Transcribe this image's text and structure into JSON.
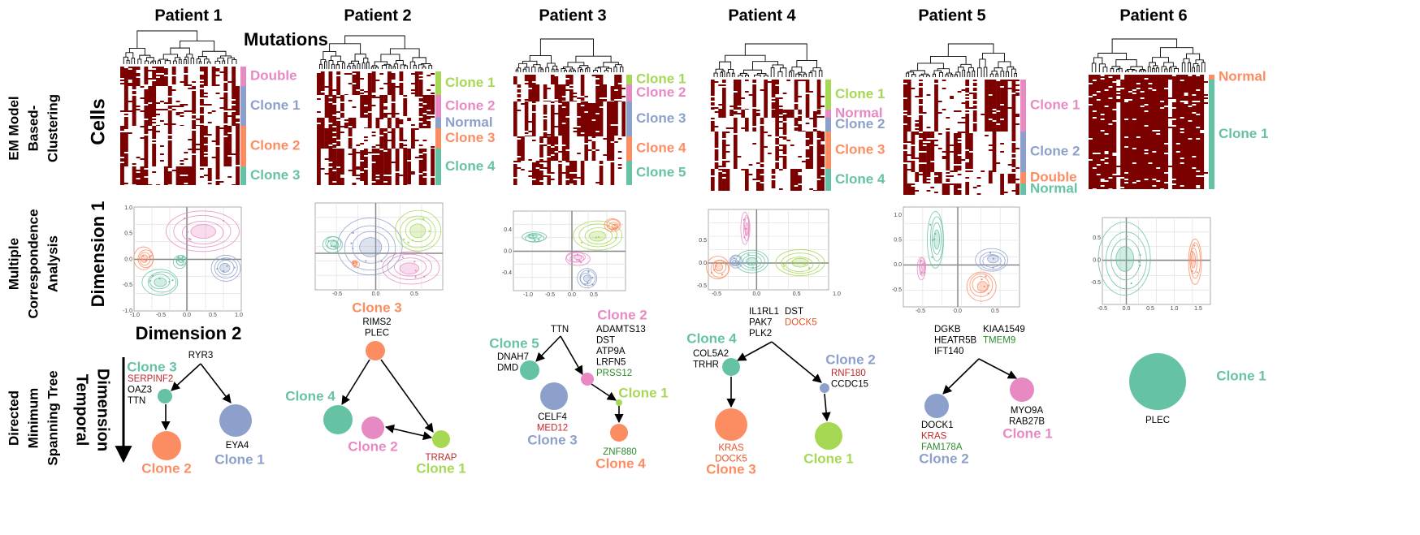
{
  "row_labels": [
    [
      "EM Model",
      "Based-",
      "Clustering"
    ],
    [
      "Multiple",
      "Correspondence",
      "Analysis"
    ],
    [
      "Directed",
      "Minimum",
      "Spanning Tree"
    ]
  ],
  "axis_labels": {
    "mutations": "Mutations",
    "cells": "Cells",
    "dimension_1": "Dimension 1",
    "dimension_2": "Dimension 2",
    "temporal_dimension": [
      "Temporal",
      "Dimension"
    ]
  },
  "heatmap_color": "#7b0000",
  "patients": [
    {
      "title": "Patient 1",
      "clusters": [
        {
          "label": "Double",
          "color": "#e78ac3"
        },
        {
          "label": "Clone 1",
          "color": "#8da0cb"
        },
        {
          "label": "Clone 2",
          "color": "#fc8d62"
        },
        {
          "label": "Clone 3",
          "color": "#66c2a5"
        }
      ],
      "mca": {
        "xticks": [
          "-1.0",
          "-0.5",
          "0.0",
          "0.5",
          "1.0"
        ],
        "yticks": [
          "1.0",
          "0.5",
          "0.0",
          "-0.5",
          "-1.0"
        ]
      },
      "tree": {
        "groups": [
          [
            {
              "text": "RYR3",
              "color": "#000000"
            }
          ]
        ],
        "nodes": [
          {
            "label": "Clone 3",
            "color": "#66c2a5",
            "genes": [
              {
                "text": "SERPINF2",
                "color": "#c0282d"
              },
              {
                "text": "OAZ3",
                "color": "#000000"
              },
              {
                "text": "TTN",
                "color": "#000000"
              }
            ]
          },
          {
            "label": "Clone 1",
            "color": "#8da0cb",
            "genes": [
              {
                "text": "EYA4",
                "color": "#000000"
              }
            ]
          },
          {
            "label": "Clone 2",
            "color": "#fc8d62",
            "genes": []
          }
        ]
      }
    },
    {
      "title": "Patient 2",
      "clusters": [
        {
          "label": "Clone 1",
          "color": "#a6d854"
        },
        {
          "label": "Clone 2",
          "color": "#e78ac3"
        },
        {
          "label": "Normal",
          "color": "#8da0cb"
        },
        {
          "label": "Clone 3",
          "color": "#fc8d62"
        },
        {
          "label": "Clone 4",
          "color": "#66c2a5"
        }
      ],
      "mca": {
        "xticks": [
          "-0.5",
          "0.0",
          "0.5"
        ]
      },
      "tree": {
        "groups": [],
        "nodes": [
          {
            "label": "Clone 3",
            "color": "#fc8d62",
            "genes": [
              {
                "text": "RIMS2",
                "color": "#000000"
              },
              {
                "text": "PLEC",
                "color": "#000000"
              }
            ]
          },
          {
            "label": "Clone 4",
            "color": "#66c2a5",
            "genes": []
          },
          {
            "label": "Clone 2",
            "color": "#e78ac3",
            "genes": []
          },
          {
            "label": "Clone 1",
            "color": "#a6d854",
            "genes": [
              {
                "text": "TRRAP",
                "color": "#c0282d"
              }
            ]
          }
        ]
      }
    },
    {
      "title": "Patient 3",
      "clusters": [
        {
          "label": "Clone 1",
          "color": "#a6d854"
        },
        {
          "label": "Clone 2",
          "color": "#e78ac3"
        },
        {
          "label": "Clone 3",
          "color": "#8da0cb"
        },
        {
          "label": "Clone 4",
          "color": "#fc8d62"
        },
        {
          "label": "Clone 5",
          "color": "#66c2a5"
        }
      ],
      "mca": {
        "xticks": [
          "-1.0",
          "-0.5",
          "0.0",
          "0.5"
        ],
        "yticks": [
          "0.4",
          "0.0",
          "-0.4"
        ]
      },
      "tree": {
        "groups": [
          [
            {
              "text": "TTN",
              "color": "#000000"
            }
          ]
        ],
        "nodes": [
          {
            "label": "Clone 5",
            "color": "#66c2a5",
            "genes": [
              {
                "text": "DNAH7",
                "color": "#000000"
              },
              {
                "text": "DMD",
                "color": "#000000"
              }
            ]
          },
          {
            "label": "Clone 2",
            "color": "#e78ac3",
            "genes": [
              {
                "text": "ADAMTS13",
                "color": "#000000"
              },
              {
                "text": "DST",
                "color": "#000000"
              },
              {
                "text": "ATP9A",
                "color": "#000000"
              },
              {
                "text": "LRFN5",
                "color": "#000000"
              },
              {
                "text": "PRSS12",
                "color": "#2e8b2e"
              }
            ]
          },
          {
            "label": "Clone 3",
            "color": "#8da0cb",
            "genes": [
              {
                "text": "CELF4",
                "color": "#000000"
              },
              {
                "text": "MED12",
                "color": "#c0282d"
              }
            ]
          },
          {
            "label": "Clone 1",
            "color": "#a6d854",
            "genes": []
          },
          {
            "label": "Clone 4",
            "color": "#fc8d62",
            "genes": [
              {
                "text": "ZNF880",
                "color": "#2e8b2e"
              }
            ]
          }
        ]
      }
    },
    {
      "title": "Patient 4",
      "clusters": [
        {
          "label": "Clone 1",
          "color": "#a6d854"
        },
        {
          "label": "Normal",
          "color": "#e78ac3"
        },
        {
          "label": "Clone 2",
          "color": "#8da0cb"
        },
        {
          "label": "Clone 3",
          "color": "#fc8d62"
        },
        {
          "label": "Clone 4",
          "color": "#66c2a5"
        }
      ],
      "mca": {
        "xticks": [
          "-0.5",
          "0.0",
          "0.5",
          "1.0"
        ],
        "yticks": [
          "0.5",
          "0.0",
          "-0.5"
        ]
      },
      "tree": {
        "groups": [
          [
            {
              "text": "IL1RL1",
              "color": "#000000"
            },
            {
              "text": "PAK7",
              "color": "#000000"
            },
            {
              "text": "PLK2",
              "color": "#000000"
            }
          ],
          [
            {
              "text": "DST",
              "color": "#000000"
            },
            {
              "text": "DOCK5",
              "color": "#e8542a"
            }
          ]
        ],
        "nodes": [
          {
            "label": "Clone 4",
            "color": "#66c2a5",
            "genes": [
              {
                "text": "COL5A2",
                "color": "#000000"
              },
              {
                "text": "TRHR",
                "color": "#000000"
              }
            ]
          },
          {
            "label": "Clone 2",
            "color": "#8da0cb",
            "genes": [
              {
                "text": "RNF180",
                "color": "#c0282d"
              },
              {
                "text": "CCDC15",
                "color": "#000000"
              }
            ]
          },
          {
            "label": "Clone 3",
            "color": "#fc8d62",
            "genes": [
              {
                "text": "KRAS",
                "color": "#e8542a"
              },
              {
                "text": "DOCK5",
                "color": "#e8542a"
              }
            ]
          },
          {
            "label": "Clone 1",
            "color": "#a6d854",
            "genes": []
          }
        ]
      }
    },
    {
      "title": "Patient 5",
      "clusters": [
        {
          "label": "Clone 1",
          "color": "#e78ac3"
        },
        {
          "label": "Clone 2",
          "color": "#8da0cb"
        },
        {
          "label": "Double",
          "color": "#fc8d62"
        },
        {
          "label": "Normal",
          "color": "#66c2a5"
        }
      ],
      "mca": {
        "xticks": [
          "-0.5",
          "0.0",
          "0.5"
        ],
        "yticks": [
          "1.0",
          "0.5",
          "0.0",
          "-0.5"
        ]
      },
      "tree": {
        "groups": [
          [
            {
              "text": "DGKB",
              "color": "#000000"
            },
            {
              "text": "HEATR5B",
              "color": "#000000"
            },
            {
              "text": "IFT140",
              "color": "#000000"
            }
          ],
          [
            {
              "text": "KIAA1549",
              "color": "#000000"
            },
            {
              "text": "TMEM9",
              "color": "#2e8b2e"
            }
          ]
        ],
        "nodes": [
          {
            "label": "Clone 2",
            "color": "#8da0cb",
            "genes": [
              {
                "text": "DOCK1",
                "color": "#000000"
              },
              {
                "text": "KRAS",
                "color": "#c0282d"
              },
              {
                "text": "FAM178A",
                "color": "#2e8b2e"
              }
            ]
          },
          {
            "label": "Clone 1",
            "color": "#e78ac3",
            "genes": [
              {
                "text": "MYO9A",
                "color": "#000000"
              },
              {
                "text": "RAB27B",
                "color": "#000000"
              }
            ]
          }
        ]
      }
    },
    {
      "title": "Patient 6",
      "clusters": [
        {
          "label": "Normal",
          "color": "#fc8d62"
        },
        {
          "label": "Clone 1",
          "color": "#66c2a5"
        }
      ],
      "mca": {
        "xticks": [
          "-0.5",
          "0.0",
          "0.5",
          "1.0",
          "1.5"
        ],
        "yticks": [
          "0.5",
          "0.0",
          "-0.5"
        ]
      },
      "tree": {
        "groups": [],
        "nodes": [
          {
            "label": "Clone 1",
            "color": "#66c2a5",
            "genes": [
              {
                "text": "PLEC",
                "color": "#000000"
              }
            ]
          }
        ]
      }
    }
  ]
}
